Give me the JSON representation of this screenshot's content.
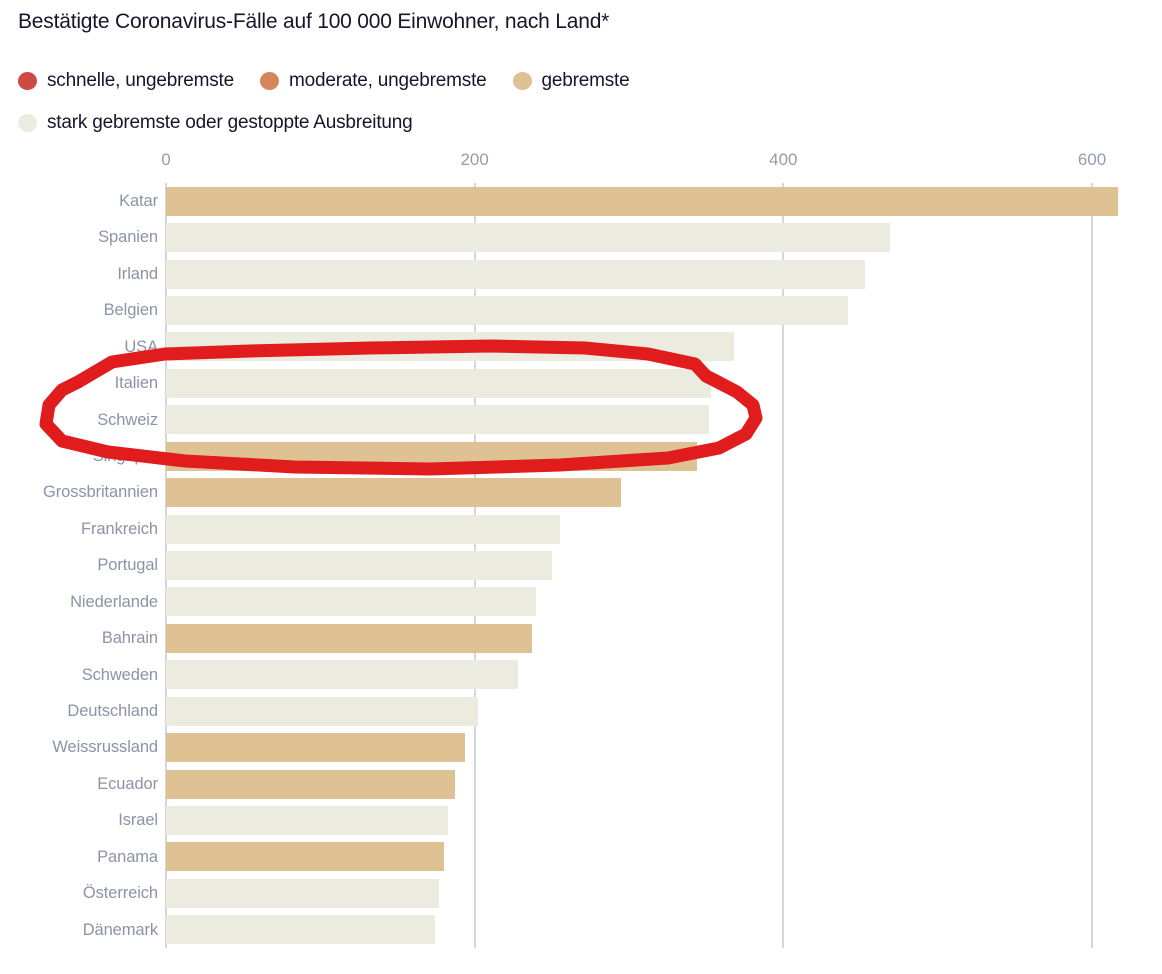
{
  "title": "Bestätigte Coronavirus-Fälle auf 100 000 Einwohner, nach Land*",
  "colors": {
    "schnelle": "#cf4a45",
    "moderate": "#d6845a",
    "gebremste": "#dec294",
    "stark": "#ecebdf",
    "grid": "#d3d6de",
    "axis_text": "#959bae",
    "label_text": "#8d93a6",
    "title_text": "#16162b",
    "annotation": "#e11c1c"
  },
  "legend": {
    "rows": [
      [
        {
          "label": "schnelle, ungebremste",
          "color_key": "schnelle"
        },
        {
          "label": "moderate, ungebremste",
          "color_key": "moderate"
        },
        {
          "label": "gebremste",
          "color_key": "gebremste"
        }
      ],
      [
        {
          "label": "stark gebremste oder gestoppte Ausbreitung",
          "color_key": "stark"
        }
      ]
    ]
  },
  "chart_data": {
    "type": "bar",
    "orientation": "horizontal",
    "title": "Bestätigte Coronavirus-Fälle auf 100 000 Einwohner, nach Land*",
    "xlabel": "",
    "ylabel": "",
    "x_ticks": [
      0,
      200,
      400,
      600
    ],
    "xlim": [
      0,
      645
    ],
    "grid": "vertical",
    "legend_position": "top",
    "categories": [
      "Katar",
      "Spanien",
      "Irland",
      "Belgien",
      "USA",
      "Italien",
      "Schweiz",
      "Singapur",
      "Grossbritannien",
      "Frankreich",
      "Portugal",
      "Niederlande",
      "Bahrain",
      "Schweden",
      "Deutschland",
      "Weissrussland",
      "Ecuador",
      "Israel",
      "Panama",
      "Österreich",
      "Dänemark"
    ],
    "values": [
      617,
      469,
      453,
      442,
      368,
      353,
      352,
      344,
      295,
      255,
      250,
      240,
      237,
      228,
      202,
      194,
      187,
      183,
      180,
      177,
      174
    ],
    "spread_category": [
      "gebremste",
      "stark",
      "stark",
      "stark",
      "stark",
      "stark",
      "stark",
      "gebremste",
      "gebremste",
      "stark",
      "stark",
      "stark",
      "gebremste",
      "stark",
      "stark",
      "gebremste",
      "gebremste",
      "stark",
      "gebremste",
      "stark",
      "stark"
    ]
  },
  "annotation": {
    "type": "hand-drawn-red-circle",
    "color": "#e11c1c",
    "circled_countries": [
      "USA",
      "Italien",
      "Schweiz",
      "Singapur"
    ]
  }
}
